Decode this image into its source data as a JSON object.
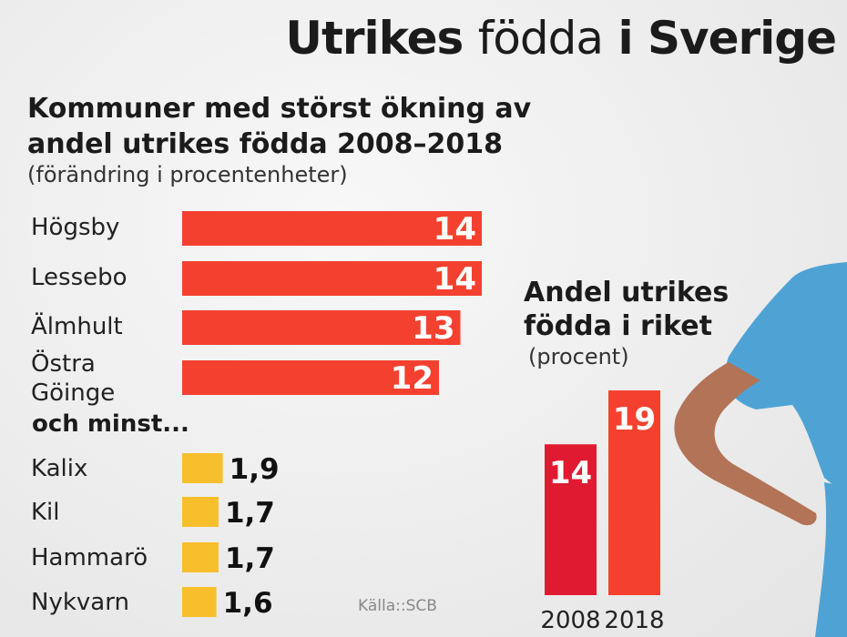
{
  "title": {
    "part1": "Utrikes",
    "part2": "födda",
    "part3": "i Sverige"
  },
  "colors": {
    "increase": "#f4412f",
    "decrease": "#f8bf2c",
    "y2008": "#e01b31",
    "y2018": "#f4412f"
  },
  "chart_data": [
    {
      "type": "bar",
      "orientation": "horizontal",
      "title": "Kommuner med störst ökning av andel utrikes födda 2008–2018",
      "subtitle": "(förändring i procentenheter)",
      "categories": [
        "Högsby",
        "Lessebo",
        "Älmhult",
        "Östra Göinge"
      ],
      "values": [
        14,
        14,
        13,
        12
      ],
      "value_labels": [
        "14",
        "14",
        "13",
        "12"
      ],
      "color": "#f4412f"
    },
    {
      "type": "bar",
      "orientation": "horizontal",
      "title": "och minst...",
      "categories": [
        "Kalix",
        "Kil",
        "Hammarö",
        "Nykvarn"
      ],
      "values": [
        1.9,
        1.7,
        1.7,
        1.6
      ],
      "value_labels": [
        "1,9",
        "1,7",
        "1,7",
        "1,6"
      ],
      "color": "#f8bf2c"
    },
    {
      "type": "bar",
      "orientation": "vertical",
      "title": "Andel utrikes födda i riket",
      "subtitle": "(procent)",
      "categories": [
        "2008",
        "2018"
      ],
      "values": [
        14,
        19
      ],
      "value_labels": [
        "14",
        "19"
      ],
      "colors": [
        "#e01b31",
        "#f4412f"
      ]
    }
  ],
  "source": "Källa::SCB"
}
